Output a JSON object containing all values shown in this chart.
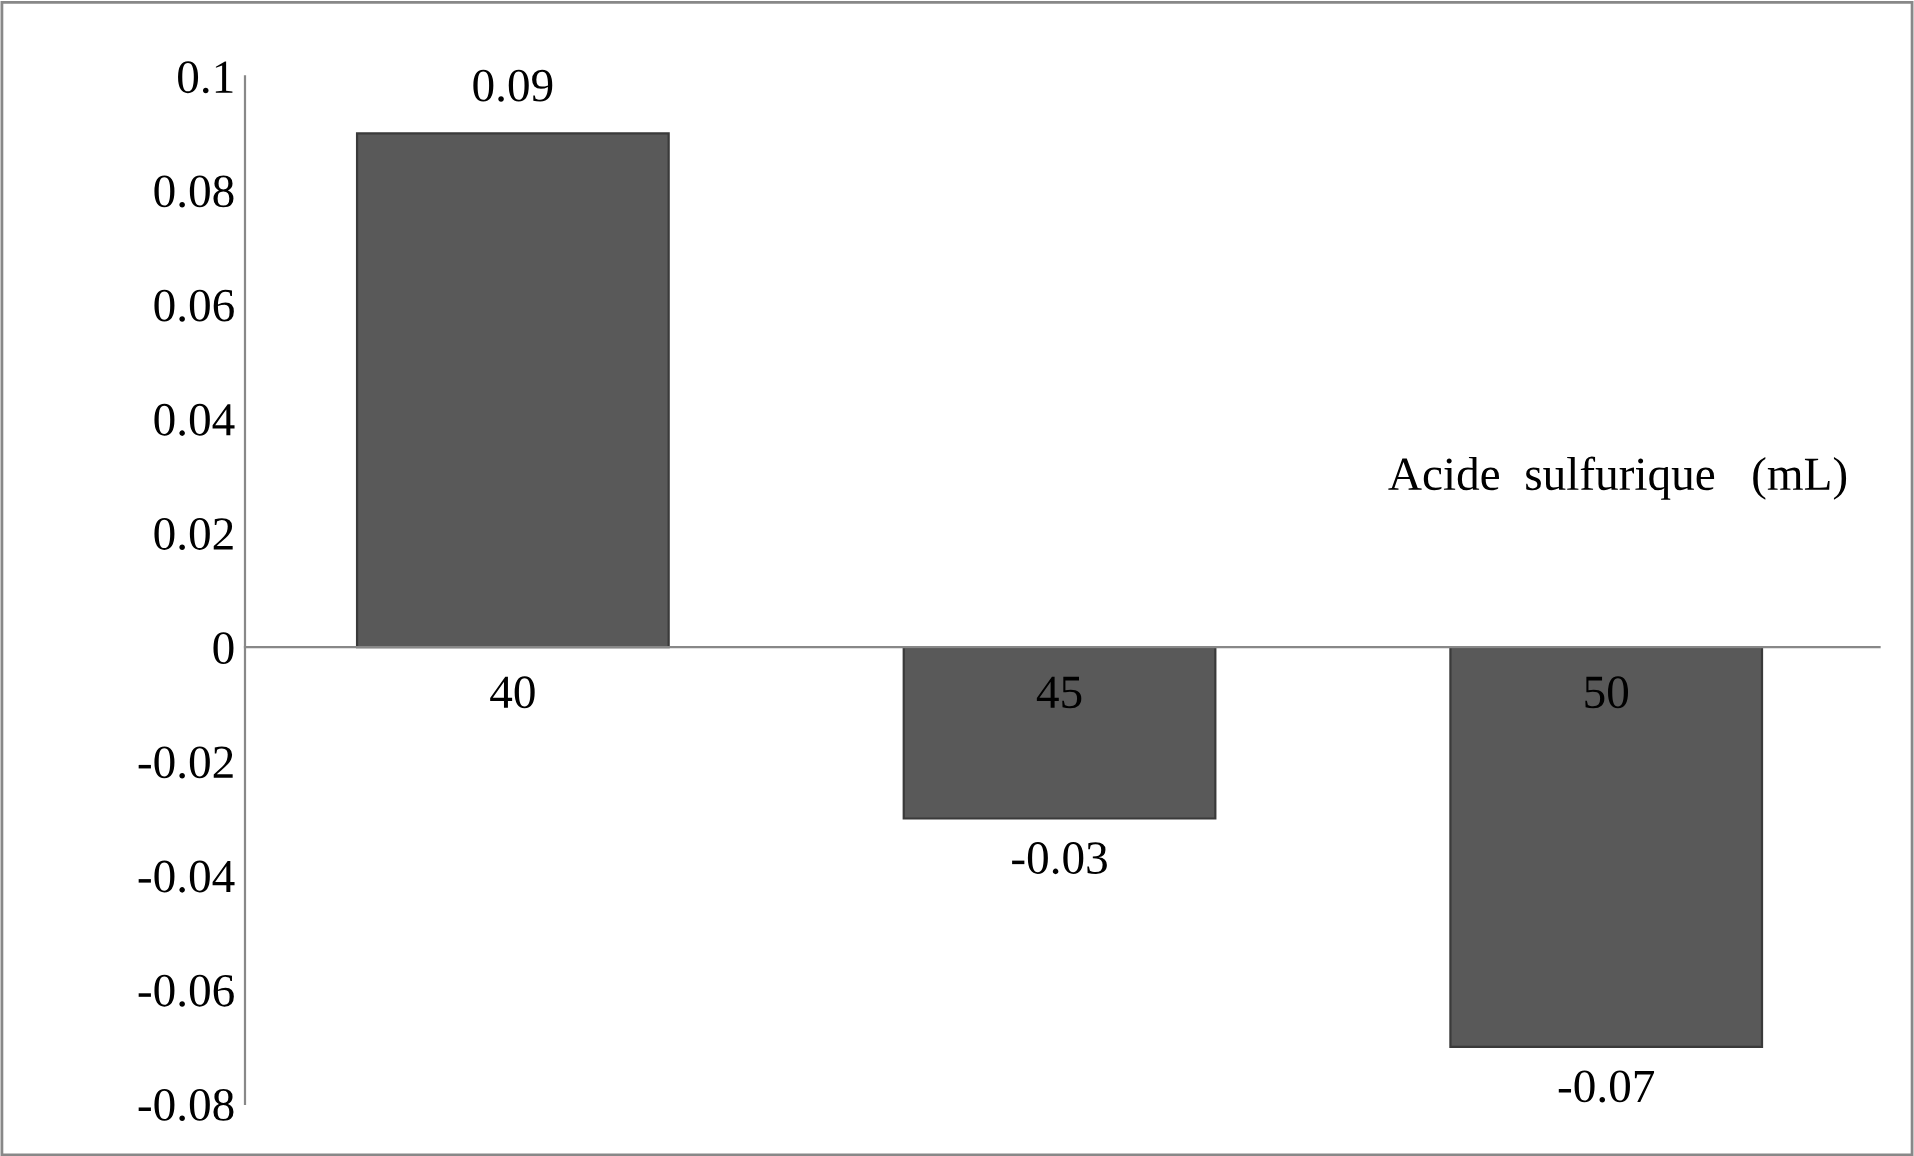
{
  "chart_data": {
    "type": "bar",
    "xlabel": "Acide  sulfurique   (mL)",
    "categories": [
      "40",
      "45",
      "50"
    ],
    "values": [
      0.09,
      -0.03,
      -0.07
    ],
    "color": "#595959",
    "ylim": [
      -0.08,
      0.1
    ],
    "yticks": [
      -0.08,
      -0.06,
      -0.04,
      -0.02,
      0,
      0.02,
      0.04,
      0.06,
      0.08,
      0.1
    ],
    "data_labels": true,
    "grid": false,
    "legend": false
  }
}
